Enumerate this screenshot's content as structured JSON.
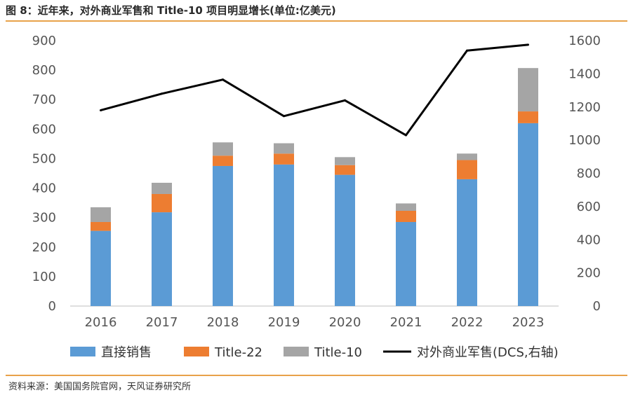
{
  "header": {
    "title": "图 8：近年来，对外商业军售和 Title-10 项目明显增长(单位:亿美元)"
  },
  "footer": {
    "source": "资料来源：美国国务院官网，天风证券研究所"
  },
  "colors": {
    "direct": "#5b9bd5",
    "title22": "#ed7d31",
    "title10": "#a5a5a5",
    "line": "#000000",
    "accent_rule": "#e8a24a"
  },
  "chart_data": {
    "type": "bar",
    "stacked": true,
    "title": "",
    "categories": [
      "2016",
      "2017",
      "2018",
      "2019",
      "2020",
      "2021",
      "2022",
      "2023"
    ],
    "series": [
      {
        "name": "直接销售",
        "axis": "left",
        "values": [
          255,
          318,
          475,
          480,
          445,
          285,
          430,
          620
        ]
      },
      {
        "name": "Title-22",
        "axis": "left",
        "values": [
          30,
          62,
          35,
          37,
          33,
          38,
          65,
          40
        ]
      },
      {
        "name": "Title-10",
        "axis": "left",
        "values": [
          50,
          38,
          45,
          35,
          27,
          25,
          22,
          147
        ]
      },
      {
        "name": "对外商业军售(DCS,右轴)",
        "axis": "right",
        "type": "line",
        "values": [
          1180,
          1280,
          1365,
          1145,
          1240,
          1030,
          1540,
          1575
        ]
      }
    ],
    "y_left": {
      "min": 0,
      "max": 900,
      "ticks": [
        "0",
        "100",
        "200",
        "300",
        "400",
        "500",
        "600",
        "700",
        "800",
        "900"
      ]
    },
    "y_right": {
      "min": 0,
      "max": 1600,
      "ticks": [
        "0",
        "200",
        "400",
        "600",
        "800",
        "1000",
        "1200",
        "1400",
        "1600"
      ]
    },
    "grid": false,
    "legend_position": "bottom"
  }
}
